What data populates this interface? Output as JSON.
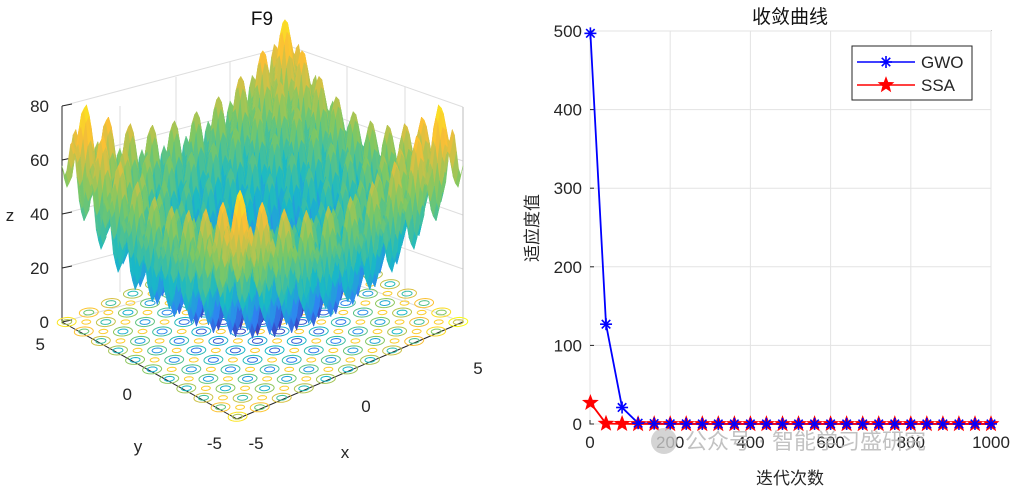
{
  "chart_data": [
    {
      "type": "surface3d",
      "title": "F9",
      "xlabel": "x",
      "ylabel": "y",
      "zlabel": "z",
      "x_ticks": [
        "-5",
        "0",
        "5"
      ],
      "y_ticks": [
        "-5",
        "0",
        "5"
      ],
      "z_ticks": [
        "0",
        "20",
        "40",
        "60",
        "80"
      ],
      "xlim": [
        -5.12,
        5.12
      ],
      "ylim": [
        -5.12,
        5.12
      ],
      "zlim": [
        0,
        80
      ],
      "function": "Rastrigin: sum(x_i^2 - 10cos(2*pi*x_i) + 10)",
      "contour_projection": true,
      "colormap": [
        "#3e26a8",
        "#2f83f3",
        "#19b9c6",
        "#7dc864",
        "#fbbe36",
        "#f9fb15"
      ]
    },
    {
      "type": "line",
      "title": "收敛曲线",
      "xlabel": "迭代次数",
      "ylabel": "适应度值",
      "xlim": [
        0,
        1000
      ],
      "ylim": [
        0,
        500
      ],
      "x_ticks": [
        "0",
        "200",
        "400",
        "600",
        "800",
        "1000"
      ],
      "y_ticks": [
        "0",
        "100",
        "200",
        "300",
        "400",
        "500"
      ],
      "grid": true,
      "legend_position": "top-right",
      "x": [
        1,
        40,
        80,
        120,
        160,
        200,
        240,
        280,
        320,
        360,
        400,
        440,
        480,
        520,
        560,
        600,
        640,
        680,
        720,
        760,
        800,
        840,
        880,
        920,
        960,
        1000
      ],
      "series": [
        {
          "name": "GWO",
          "color": "#0000ff",
          "marker": "asterisk",
          "values": [
            497,
            127,
            21,
            1,
            0.5,
            0.3,
            0.2,
            0.1,
            0.1,
            0.1,
            0.1,
            0.1,
            0.1,
            0.1,
            0.1,
            0.1,
            0.1,
            0.1,
            0.1,
            0.1,
            0.1,
            0.1,
            0.1,
            0.1,
            0.1,
            0.1
          ]
        },
        {
          "name": "SSA",
          "color": "#ff0000",
          "marker": "pentagram",
          "values": [
            27,
            0.5,
            0.2,
            0,
            0,
            0,
            0,
            0,
            0,
            0,
            0,
            0,
            0,
            0,
            0,
            0,
            0,
            0,
            0,
            0,
            0,
            0,
            0,
            0,
            0,
            0
          ]
        }
      ]
    }
  ],
  "watermark": "公众号 · 智能学习盛研究"
}
